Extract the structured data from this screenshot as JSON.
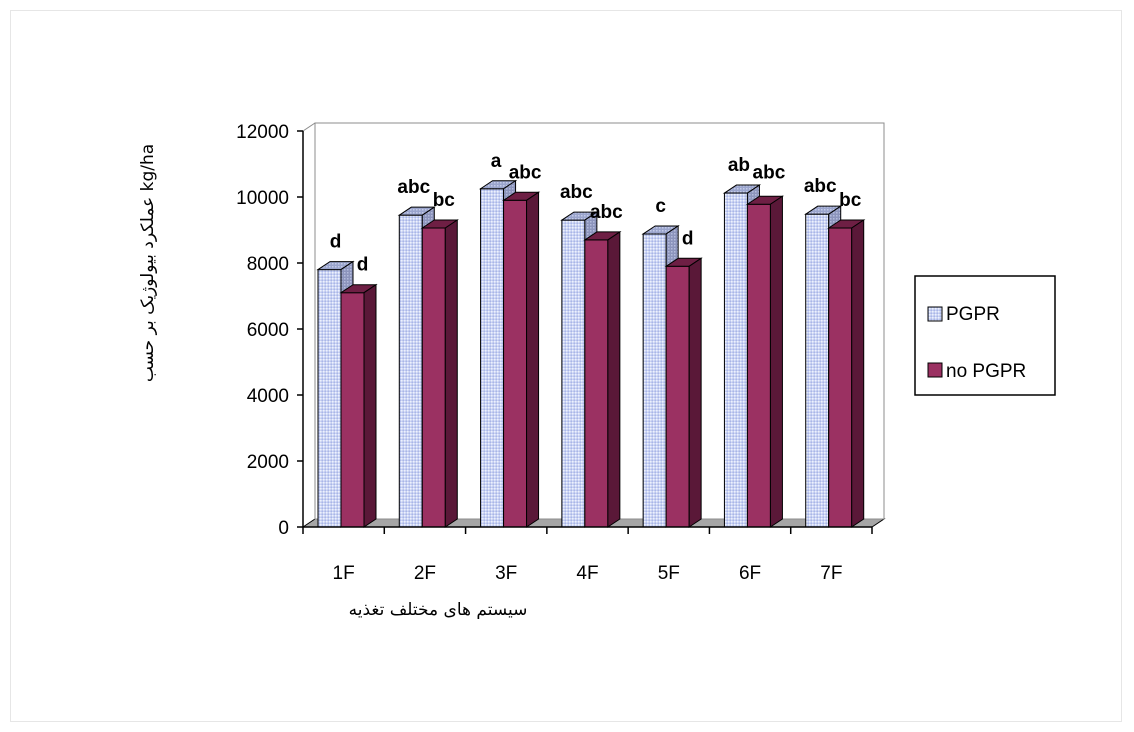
{
  "chart_data": {
    "type": "bar",
    "categories": [
      "1F",
      "2F",
      "3F",
      "4F",
      "5F",
      "6F",
      "7F"
    ],
    "series": [
      {
        "name": "PGPR",
        "values": [
          7800,
          9450,
          10250,
          9300,
          8880,
          10120,
          9480
        ],
        "letters": [
          "d",
          "abc",
          "a",
          "abc",
          "c",
          "ab",
          "abc"
        ],
        "color": "#c8d2f4"
      },
      {
        "name": "no PGPR",
        "values": [
          7100,
          9060,
          9900,
          8700,
          7900,
          9780,
          9060
        ],
        "letters": [
          "d",
          "bc",
          "abc",
          "abc",
          "d",
          "abc",
          "bc"
        ],
        "color": "#9b3162"
      }
    ],
    "xlabel": "سیستم های مختلف تغذیه",
    "ylabel": "عملکرد بیولوژیک بر حسب kg/ha",
    "ylim": [
      0,
      12000
    ],
    "yticks": [
      0,
      2000,
      4000,
      6000,
      8000,
      10000,
      12000
    ],
    "legend_position": "right",
    "grid": false,
    "three_d": true
  }
}
